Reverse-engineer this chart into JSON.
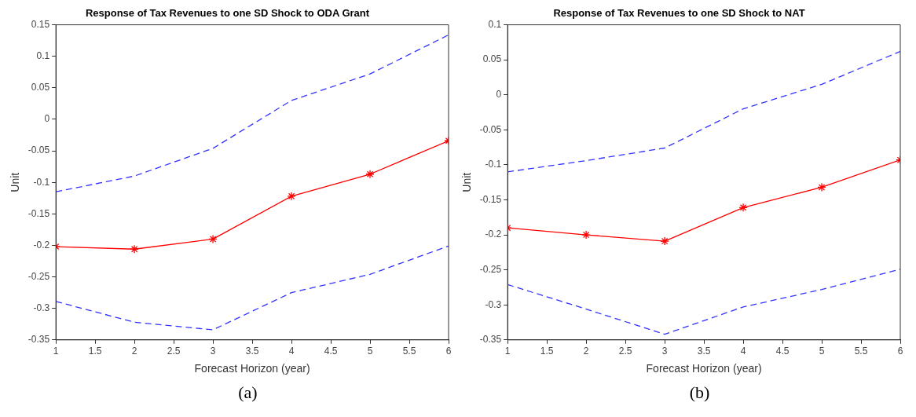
{
  "chart_data": [
    {
      "type": "line",
      "title": "Response of Tax Revenues to one SD Shock to ODA Grant",
      "xlabel": "Forecast Horizon (year)",
      "ylabel": "Unit",
      "annotations": [
        "(a)"
      ],
      "x": [
        1,
        2,
        3,
        4,
        5,
        6
      ],
      "series": [
        {
          "color": "#3333ff",
          "line_style": "dashed",
          "marker": "none",
          "values": [
            -0.115,
            -0.09,
            -0.046,
            0.03,
            0.072,
            0.134
          ]
        },
        {
          "color": "#ff0000",
          "line_style": "solid",
          "marker": "cross",
          "values": [
            -0.202,
            -0.206,
            -0.19,
            -0.122,
            -0.087,
            -0.034
          ]
        },
        {
          "color": "#3333ff",
          "line_style": "dashed",
          "marker": "none",
          "values": [
            -0.289,
            -0.322,
            -0.334,
            -0.275,
            -0.246,
            -0.201
          ]
        }
      ],
      "xlim": [
        1,
        6
      ],
      "xticks": [
        1,
        1.5,
        2,
        2.5,
        3,
        3.5,
        4,
        4.5,
        5,
        5.5,
        6
      ],
      "ylim": [
        -0.35,
        0.15
      ],
      "yticks": [
        -0.35,
        -0.3,
        -0.25,
        -0.2,
        -0.15,
        -0.1,
        -0.05,
        0,
        0.05,
        0.1,
        0.15
      ]
    },
    {
      "type": "line",
      "title": "Response of Tax Revenues to one SD Shock to NAT",
      "xlabel": "Forecast Horizon (year)",
      "ylabel": "Unit",
      "annotations": [
        "(b)"
      ],
      "x": [
        1,
        2,
        3,
        4,
        5,
        6
      ],
      "series": [
        {
          "color": "#3333ff",
          "line_style": "dashed",
          "marker": "none",
          "values": [
            -0.11,
            -0.094,
            -0.076,
            -0.02,
            0.015,
            0.062
          ]
        },
        {
          "color": "#ff0000",
          "line_style": "solid",
          "marker": "cross",
          "values": [
            -0.19,
            -0.2,
            -0.209,
            -0.161,
            -0.132,
            -0.093
          ]
        },
        {
          "color": "#3333ff",
          "line_style": "dashed",
          "marker": "none",
          "values": [
            -0.271,
            -0.306,
            -0.342,
            -0.303,
            -0.278,
            -0.249
          ]
        }
      ],
      "xlim": [
        1,
        6
      ],
      "xticks": [
        1,
        1.5,
        2,
        2.5,
        3,
        3.5,
        4,
        4.5,
        5,
        5.5,
        6
      ],
      "ylim": [
        -0.35,
        0.1
      ],
      "yticks": [
        -0.35,
        -0.3,
        -0.25,
        -0.2,
        -0.15,
        -0.1,
        -0.05,
        0,
        0.05,
        0.1
      ]
    }
  ]
}
